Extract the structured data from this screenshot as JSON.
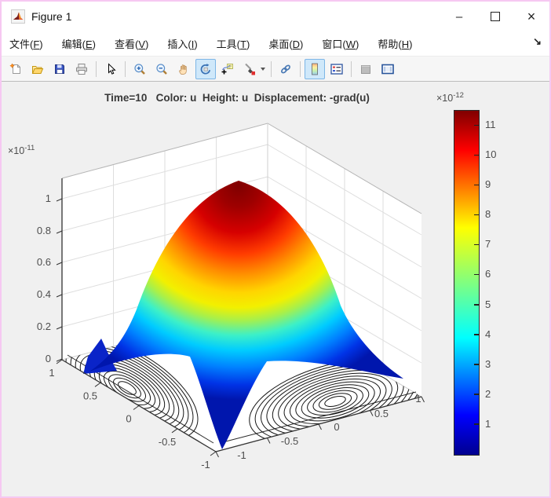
{
  "window": {
    "title": "Figure 1",
    "minimize_glyph": "–",
    "close_glyph": "×"
  },
  "menu_bar": {
    "items": [
      {
        "pre": "文件(",
        "key": "F",
        "post": ")"
      },
      {
        "pre": "编辑(",
        "key": "E",
        "post": ")"
      },
      {
        "pre": "查看(",
        "key": "V",
        "post": ")"
      },
      {
        "pre": "插入(",
        "key": "I",
        "post": ")"
      },
      {
        "pre": "工具(",
        "key": "T",
        "post": ")"
      },
      {
        "pre": "桌面(",
        "key": "D",
        "post": ")"
      },
      {
        "pre": "窗口(",
        "key": "W",
        "post": ")"
      },
      {
        "pre": "帮助(",
        "key": "H",
        "post": ")"
      }
    ],
    "dock_arrow_glyph": "↘"
  },
  "toolbar": {
    "items": [
      {
        "name": "new-figure",
        "active": false
      },
      {
        "name": "open-file",
        "active": false
      },
      {
        "name": "save-figure",
        "active": false
      },
      {
        "name": "print-figure",
        "active": false
      },
      {
        "name": "edit-plot-pointer",
        "active": false
      },
      {
        "name": "zoom-in",
        "active": false
      },
      {
        "name": "zoom-out",
        "active": false
      },
      {
        "name": "pan",
        "active": false
      },
      {
        "name": "rotate-3d",
        "active": true
      },
      {
        "name": "data-cursor",
        "active": false
      },
      {
        "name": "brush-data",
        "active": false
      },
      {
        "name": "link-plot",
        "active": false
      },
      {
        "name": "insert-colorbar",
        "active": true
      },
      {
        "name": "insert-legend",
        "active": false
      },
      {
        "name": "hide-plot-tools",
        "active": false,
        "disabled": true
      },
      {
        "name": "show-plot-tools",
        "active": false
      }
    ]
  },
  "chart_data": {
    "type": "surface3d",
    "title": "Time=10   Color: u  Height: u  Displacement: -grad(u)",
    "x_tick_labels": [
      "-1",
      "-0.5",
      "0",
      "0.5",
      "1"
    ],
    "y_tick_labels": [
      "1",
      "0.5",
      "0",
      "-0.5",
      "-1"
    ],
    "z_tick_labels": [
      "0",
      "0.2",
      "0.4",
      "0.6",
      "0.8",
      "1"
    ],
    "x_range": [
      -1,
      1
    ],
    "y_range": [
      -1,
      1
    ],
    "z_range": [
      0,
      1.15e-11
    ],
    "z_exponent": {
      "base": "×10",
      "sup": "-11"
    },
    "peak": {
      "x": 0,
      "y": 0,
      "u": 1.15e-11
    },
    "colormap": "jet",
    "colormap_stops": [
      "#00008f",
      "#0000ff",
      "#00ffff",
      "#80ff80",
      "#ffff00",
      "#ff0000",
      "#800000"
    ],
    "colorbar": {
      "exponent": {
        "base": "×10",
        "sup": "-12"
      },
      "tick_labels": [
        "1",
        "2",
        "3",
        "4",
        "5",
        "6",
        "7",
        "8",
        "9",
        "10",
        "11"
      ],
      "min": 0,
      "max": 1.15e-11
    },
    "surface_description": "Radially symmetric dome u(x,y) ≈ 1.15e-11·cos(πx/2)·cos(πy/2) on [-1,1]², jet-colored by height, with dense black contour rings near the domain corners (wave-equation membrane at Time=10)",
    "sampled_grid": {
      "x": [
        -1,
        -0.5,
        0,
        0.5,
        1
      ],
      "y": [
        -1,
        -0.5,
        0,
        0.5,
        1
      ],
      "u_times_1e11": [
        [
          0,
          0,
          0,
          0,
          0
        ],
        [
          0,
          0.5,
          0.8,
          0.5,
          0
        ],
        [
          0,
          0.8,
          1.15,
          0.8,
          0
        ],
        [
          0,
          0.5,
          0.8,
          0.5,
          0
        ],
        [
          0,
          0,
          0,
          0,
          0
        ]
      ]
    }
  }
}
